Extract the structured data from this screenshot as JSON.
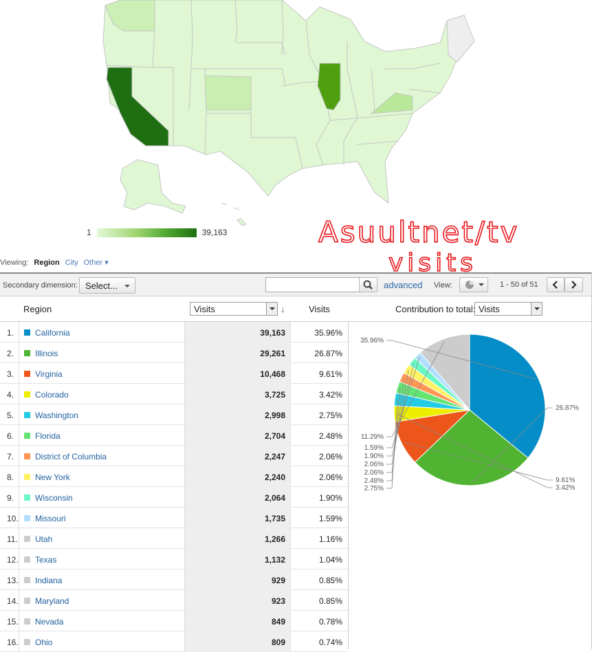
{
  "legend": {
    "min": "1",
    "max": "39,163"
  },
  "handwriting": {
    "line1": "Asuultnet/tv",
    "line2": "visits"
  },
  "viewing": {
    "label": "Viewing:",
    "active": "Region",
    "city": "City",
    "other": "Other"
  },
  "toolbar": {
    "secondary_label": "Secondary dimension:",
    "select_label": "Select...",
    "search_value": "",
    "advanced_label": "advanced",
    "view_label": "View:",
    "pager_text": "1 - 50 of 51"
  },
  "header": {
    "region": "Region",
    "visits_dropdown": "Visits",
    "visits": "Visits",
    "contribution_label": "Contribution to total:",
    "contribution_dropdown": "Visits"
  },
  "rows": [
    {
      "num": "1.",
      "region": "California",
      "visits": "39,163",
      "pct": "35.96%",
      "color": "#058dc7"
    },
    {
      "num": "2.",
      "region": "Illinois",
      "visits": "29,261",
      "pct": "26.87%",
      "color": "#50b432"
    },
    {
      "num": "3.",
      "region": "Virginia",
      "visits": "10,468",
      "pct": "9.61%",
      "color": "#ed561b"
    },
    {
      "num": "4.",
      "region": "Colorado",
      "visits": "3,725",
      "pct": "3.42%",
      "color": "#edef00"
    },
    {
      "num": "5.",
      "region": "Washington",
      "visits": "2,998",
      "pct": "2.75%",
      "color": "#24cbe5"
    },
    {
      "num": "6.",
      "region": "Florida",
      "visits": "2,704",
      "pct": "2.48%",
      "color": "#64e572"
    },
    {
      "num": "7.",
      "region": "District of Columbia",
      "visits": "2,247",
      "pct": "2.06%",
      "color": "#ff9655"
    },
    {
      "num": "8.",
      "region": "New York",
      "visits": "2,240",
      "pct": "2.06%",
      "color": "#fff263"
    },
    {
      "num": "9.",
      "region": "Wisconsin",
      "visits": "2,064",
      "pct": "1.90%",
      "color": "#6af9c4"
    },
    {
      "num": "10.",
      "region": "Missouri",
      "visits": "1,735",
      "pct": "1.59%",
      "color": "#b2deff"
    },
    {
      "num": "11.",
      "region": "Utah",
      "visits": "1,266",
      "pct": "1.16%",
      "color": "#cccccc"
    },
    {
      "num": "12.",
      "region": "Texas",
      "visits": "1,132",
      "pct": "1.04%",
      "color": "#cccccc"
    },
    {
      "num": "13.",
      "region": "Indiana",
      "visits": "929",
      "pct": "0.85%",
      "color": "#cccccc"
    },
    {
      "num": "14.",
      "region": "Maryland",
      "visits": "923",
      "pct": "0.85%",
      "color": "#cccccc"
    },
    {
      "num": "15.",
      "region": "Nevada",
      "visits": "849",
      "pct": "0.78%",
      "color": "#cccccc"
    },
    {
      "num": "16.",
      "region": "Ohio",
      "visits": "809",
      "pct": "0.74%",
      "color": "#cccccc"
    }
  ],
  "chart_data": {
    "type": "pie",
    "slices": [
      {
        "label": "35.96%",
        "value": 35.96,
        "color": "#058dc7"
      },
      {
        "label": "26.87%",
        "value": 26.87,
        "color": "#50b432"
      },
      {
        "label": "9.61%",
        "value": 9.61,
        "color": "#ed561b"
      },
      {
        "label": "3.42%",
        "value": 3.42,
        "color": "#edef00"
      },
      {
        "label": "2.75%",
        "value": 2.75,
        "color": "#24cbe5"
      },
      {
        "label": "2.48%",
        "value": 2.48,
        "color": "#64e572"
      },
      {
        "label": "2.06%",
        "value": 2.06,
        "color": "#ff9655"
      },
      {
        "label": "2.06%",
        "value": 2.06,
        "color": "#fff263"
      },
      {
        "label": "1.90%",
        "value": 1.9,
        "color": "#6af9c4"
      },
      {
        "label": "1.59%",
        "value": 1.59,
        "color": "#b2deff"
      },
      {
        "label": "11.29%",
        "value": 11.29,
        "color": "#cccccc"
      }
    ]
  },
  "map": {
    "highlight": [
      {
        "state": "California",
        "color": "#1f6e12"
      },
      {
        "state": "Illinois",
        "color": "#4ea00f"
      },
      {
        "state": "Virginia",
        "color": "#b9e89a"
      },
      {
        "state": "Colorado",
        "color": "#c8efb0"
      },
      {
        "state": "Washington",
        "color": "#ccefb6"
      }
    ]
  }
}
